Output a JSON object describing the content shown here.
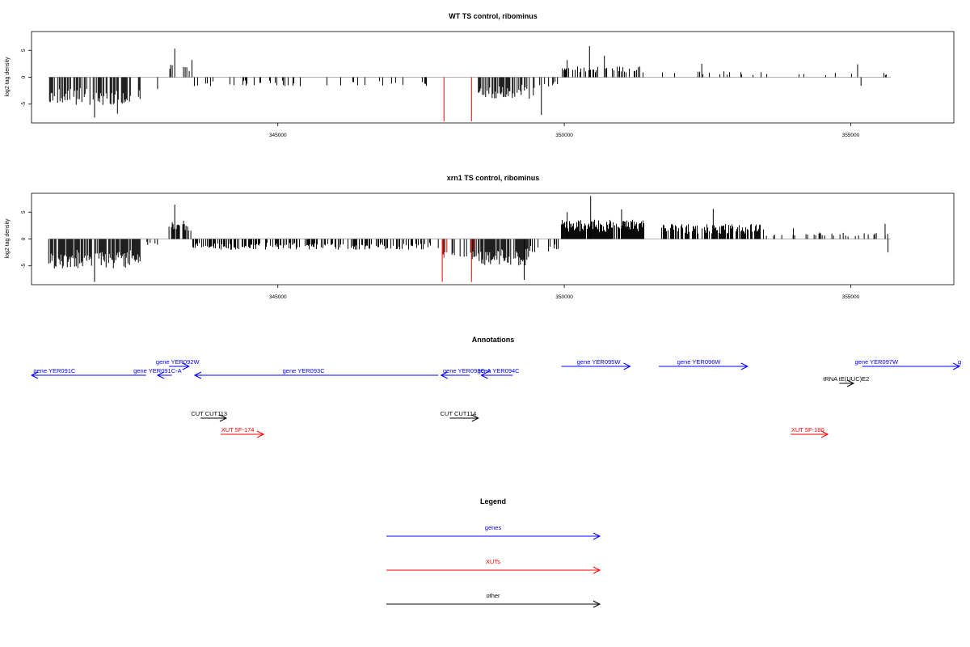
{
  "chart_data": [
    {
      "type": "bar",
      "title": "WT TS control, ribominus",
      "ylabel": "log2 tag density",
      "xlim": [
        340700,
        356800
      ],
      "ylim": [
        -8.5,
        8.5
      ],
      "xticks": [
        345000,
        350000,
        355000
      ],
      "yticks": [
        -5,
        0,
        5
      ],
      "clusters": [
        {
          "x0": 341000,
          "x1": 342600,
          "sign": -1,
          "scale": 5.2,
          "density": 0.55,
          "color": "#000000"
        },
        {
          "x0": 343100,
          "x1": 343500,
          "sign": 1,
          "scale": 2.4,
          "density": 0.35,
          "color": "#000000"
        },
        {
          "x0": 343500,
          "x1": 347700,
          "sign": -1,
          "scale": 1.7,
          "density": 0.12,
          "color": "#000000"
        },
        {
          "x0": 348500,
          "x1": 349500,
          "sign": -1,
          "scale": 4.0,
          "density": 0.6,
          "color": "#000000"
        },
        {
          "x0": 349500,
          "x1": 349900,
          "sign": -1,
          "scale": 1.8,
          "density": 0.15,
          "color": "#000000"
        },
        {
          "x0": 349950,
          "x1": 351400,
          "sign": 1,
          "scale": 2.0,
          "density": 0.35,
          "color": "#000000"
        },
        {
          "x0": 351700,
          "x1": 353800,
          "sign": 1,
          "scale": 1.1,
          "density": 0.1,
          "color": "#000000"
        },
        {
          "x0": 353800,
          "x1": 355700,
          "sign": 1,
          "scale": 0.9,
          "density": 0.06,
          "color": "#000000"
        }
      ],
      "spikes": [
        {
          "x": 343200,
          "y": 5.3
        },
        {
          "x": 343500,
          "y": 3.2
        },
        {
          "x": 350050,
          "y": 3.2
        },
        {
          "x": 350440,
          "y": 5.8
        },
        {
          "x": 350700,
          "y": 4.0
        },
        {
          "x": 342900,
          "y": -2.2
        },
        {
          "x": 341800,
          "y": -7.5
        },
        {
          "x": 342200,
          "y": -6.8
        },
        {
          "x": 355120,
          "y": 2.4
        },
        {
          "x": 355180,
          "y": -1.6
        },
        {
          "x": 352400,
          "y": 2.5
        },
        {
          "x": 349600,
          "y": -7.0
        }
      ],
      "red_spikes": [
        {
          "x": 347900,
          "y": -8.2
        },
        {
          "x": 348380,
          "y": -8.2
        }
      ]
    },
    {
      "type": "bar",
      "title": "xrn1 TS control, ribominus",
      "ylabel": "log2 tag density",
      "xlim": [
        340700,
        356800
      ],
      "ylim": [
        -8.5,
        8.5
      ],
      "xticks": [
        345000,
        350000,
        355000
      ],
      "yticks": [
        -5,
        0,
        5
      ],
      "clusters": [
        {
          "x0": 341000,
          "x1": 342600,
          "sign": -1,
          "scale": 5.5,
          "density": 0.75,
          "color": "#000000"
        },
        {
          "x0": 342700,
          "x1": 342900,
          "sign": -1,
          "scale": 1.5,
          "density": 0.3,
          "color": "#000000"
        },
        {
          "x0": 343100,
          "x1": 343500,
          "sign": 1,
          "scale": 3.6,
          "density": 0.75,
          "color": "#000000"
        },
        {
          "x0": 343500,
          "x1": 347700,
          "sign": -1,
          "scale": 2.0,
          "density": 0.45,
          "color": "#000000"
        },
        {
          "x0": 347800,
          "x1": 348500,
          "sign": -1,
          "scale": 3.8,
          "density": 0.4,
          "color": "#000000"
        },
        {
          "x0": 348500,
          "x1": 349400,
          "sign": -1,
          "scale": 5.0,
          "density": 0.85,
          "color": "#000000"
        },
        {
          "x0": 349400,
          "x1": 349900,
          "sign": -1,
          "scale": 2.5,
          "density": 0.35,
          "color": "#000000"
        },
        {
          "x0": 349950,
          "x1": 351400,
          "sign": 1,
          "scale": 3.6,
          "density": 0.95,
          "color": "#000000"
        },
        {
          "x0": 351700,
          "x1": 353500,
          "sign": 1,
          "scale": 2.8,
          "density": 0.65,
          "color": "#000000"
        },
        {
          "x0": 353500,
          "x1": 355700,
          "sign": 1,
          "scale": 1.2,
          "density": 0.2,
          "color": "#000000"
        }
      ],
      "spikes": [
        {
          "x": 343200,
          "y": 6.4
        },
        {
          "x": 350050,
          "y": 5.0
        },
        {
          "x": 350460,
          "y": 8.0
        },
        {
          "x": 351000,
          "y": 5.5
        },
        {
          "x": 352600,
          "y": 5.6
        },
        {
          "x": 341800,
          "y": -8.0
        },
        {
          "x": 349300,
          "y": -7.6
        },
        {
          "x": 355600,
          "y": 2.8
        },
        {
          "x": 355650,
          "y": -2.5
        },
        {
          "x": 354000,
          "y": 2.0
        }
      ],
      "red_spikes": [
        {
          "x": 347870,
          "y": -8.0
        },
        {
          "x": 347900,
          "y": -3.5
        },
        {
          "x": 347950,
          "y": -2.5
        },
        {
          "x": 348380,
          "y": -8.0
        },
        {
          "x": 348420,
          "y": -2.0
        }
      ]
    }
  ],
  "annotations": {
    "title": "Annotations",
    "features": [
      {
        "label": "gene YER091C",
        "x0": 340700,
        "x1": 342700,
        "row": 2,
        "dir": -1,
        "color": "#0000ff",
        "label_x": 341100
      },
      {
        "label": "gene YER091C-A",
        "x0": 342900,
        "x1": 343150,
        "row": 2,
        "dir": -1,
        "color": "#0000ff",
        "label_x": 342900
      },
      {
        "label": "gene YER092W",
        "x0": 343100,
        "x1": 343450,
        "row": 1,
        "dir": 1,
        "color": "#0000ff",
        "label_x": 343250
      },
      {
        "label": "gene YER093C",
        "x0": 343550,
        "x1": 347800,
        "row": 2,
        "dir": -1,
        "color": "#0000ff",
        "label_x": 345450
      },
      {
        "label": "gene YER093C-A",
        "x0": 347850,
        "x1": 348350,
        "row": 2,
        "dir": -1,
        "color": "#0000ff",
        "label_x": 348300
      },
      {
        "label": "gene YER094C",
        "x0": 348550,
        "x1": 349100,
        "row": 2,
        "dir": -1,
        "color": "#0000ff",
        "label_x": 348850
      },
      {
        "label": "gene YER095W",
        "x0": 349950,
        "x1": 351150,
        "row": 1,
        "dir": 1,
        "color": "#0000ff",
        "label_x": 350600
      },
      {
        "label": "gene YER096W",
        "x0": 351650,
        "x1": 353200,
        "row": 1,
        "dir": 1,
        "color": "#0000ff",
        "label_x": 352350
      },
      {
        "label": "gene YER097W",
        "x0": 355200,
        "x1": 356900,
        "row": 1,
        "dir": 1,
        "color": "#0000ff",
        "label_x": 355450
      },
      {
        "label": "g",
        "x0": 356900,
        "x1": 356900,
        "row": 1,
        "dir": 1,
        "color": "#0000ff",
        "label_x": 356900
      },
      {
        "label": "tRNA tE(UUC)E2",
        "x0": 354800,
        "x1": 355050,
        "row": 3,
        "dir": 1,
        "color": "#000000",
        "label_x": 354920
      },
      {
        "label": "CUT CUT113",
        "x0": 343650,
        "x1": 344100,
        "row": 4,
        "dir": 1,
        "color": "#000000",
        "label_x": 343800
      },
      {
        "label": "CUT CUT114",
        "x0": 348000,
        "x1": 348500,
        "row": 4,
        "dir": 1,
        "color": "#000000",
        "label_x": 348150
      },
      {
        "label": "XUT 5F-174",
        "x0": 344000,
        "x1": 344750,
        "row": 5,
        "dir": 1,
        "color": "#ff0000",
        "label_x": 344300
      },
      {
        "label": "XUT 5F-180",
        "x0": 353950,
        "x1": 354600,
        "row": 5,
        "dir": 1,
        "color": "#ff0000",
        "label_x": 354250
      }
    ]
  },
  "legend": {
    "title": "Legend",
    "items": [
      {
        "label": "genes",
        "color": "#0000ff"
      },
      {
        "label": "XUTs",
        "color": "#ff0000"
      },
      {
        "label": "other",
        "color": "#000000"
      }
    ]
  }
}
